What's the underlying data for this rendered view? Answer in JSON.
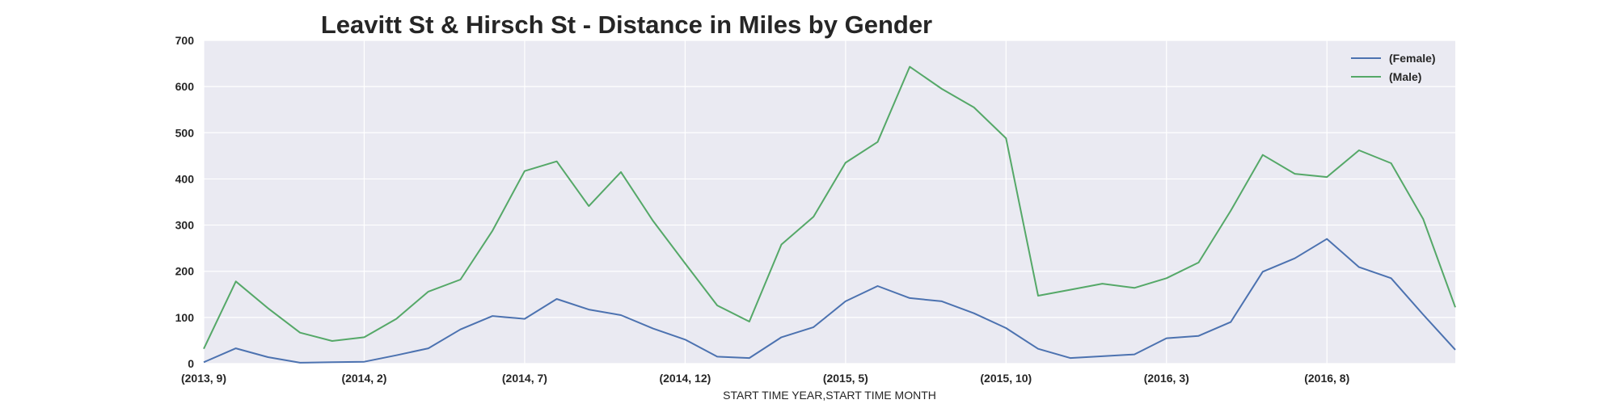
{
  "chart_data": {
    "type": "line",
    "title": "Leavitt St & Hirsch St - Distance in Miles by Gender",
    "xlabel": "START TIME YEAR,START TIME MONTH",
    "ylabel": "",
    "ylim": [
      0,
      700
    ],
    "yticks": [
      0,
      100,
      200,
      300,
      400,
      500,
      600,
      700
    ],
    "grid": true,
    "legend_position": "top-right",
    "x": [
      "(2013, 9)",
      "(2013, 10)",
      "(2013, 11)",
      "(2013, 12)",
      "(2014, 1)",
      "(2014, 2)",
      "(2014, 3)",
      "(2014, 4)",
      "(2014, 5)",
      "(2014, 6)",
      "(2014, 7)",
      "(2014, 8)",
      "(2014, 9)",
      "(2014, 10)",
      "(2014, 11)",
      "(2014, 12)",
      "(2015, 1)",
      "(2015, 2)",
      "(2015, 3)",
      "(2015, 4)",
      "(2015, 5)",
      "(2015, 6)",
      "(2015, 7)",
      "(2015, 8)",
      "(2015, 9)",
      "(2015, 10)",
      "(2015, 11)",
      "(2015, 12)",
      "(2016, 1)",
      "(2016, 2)",
      "(2016, 3)",
      "(2016, 4)",
      "(2016, 5)",
      "(2016, 6)",
      "(2016, 7)",
      "(2016, 8)",
      "(2016, 9)",
      "(2016, 10)",
      "(2016, 11)",
      "(2016, 12)"
    ],
    "xtick_labels": [
      "(2013, 9)",
      "(2014, 2)",
      "(2014, 7)",
      "(2014, 12)",
      "(2015, 5)",
      "(2015, 10)",
      "(2016, 3)",
      "(2016, 8)"
    ],
    "xtick_indices": [
      0,
      5,
      10,
      15,
      20,
      25,
      30,
      35
    ],
    "series": [
      {
        "name": "(Female)",
        "color": "#4c72b0",
        "values": [
          3,
          33,
          14,
          2,
          3,
          4,
          18,
          33,
          74,
          103,
          97,
          140,
          117,
          105,
          76,
          52,
          15,
          12,
          57,
          79,
          135,
          168,
          142,
          135,
          109,
          77,
          32,
          12,
          16,
          20,
          55,
          60,
          90,
          199,
          228,
          270,
          209,
          185,
          106,
          30
        ]
      },
      {
        "name": "(Male)",
        "color": "#55a868",
        "values": [
          32,
          178,
          120,
          67,
          49,
          57,
          97,
          156,
          182,
          288,
          417,
          438,
          341,
          415,
          309,
          217,
          126,
          91,
          258,
          318,
          435,
          480,
          643,
          595,
          555,
          488,
          147,
          160,
          173,
          164,
          185,
          219,
          331,
          452,
          411,
          404,
          462,
          434,
          313,
          122
        ]
      }
    ]
  }
}
